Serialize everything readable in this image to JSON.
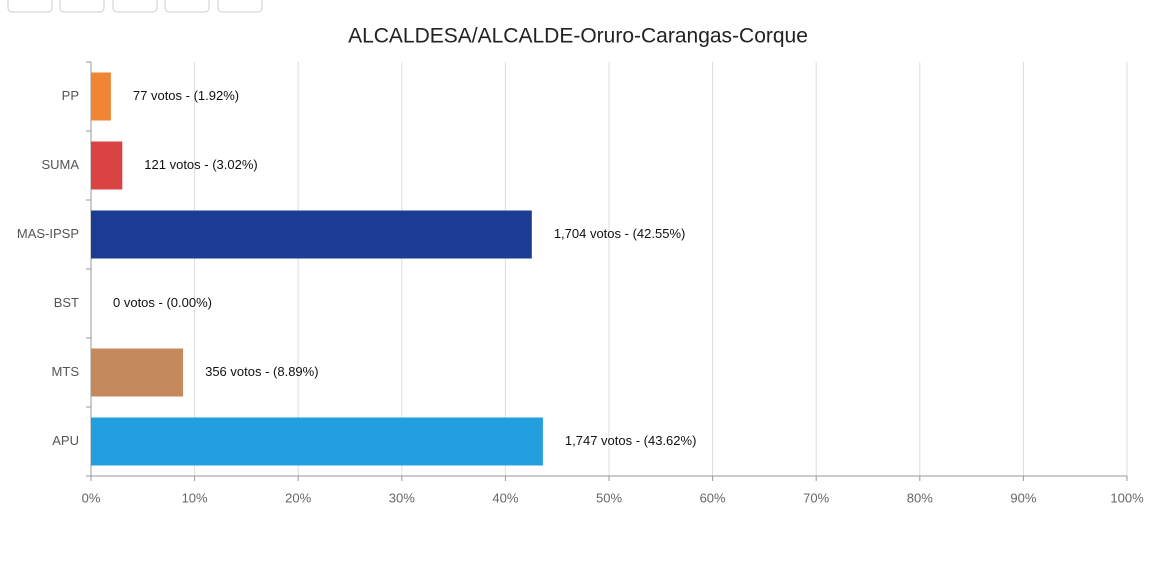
{
  "chart_data": {
    "type": "hbar",
    "title": "ALCALDESA/ALCALDE-Oruro-Carangas-Corque",
    "categories": [
      "PP",
      "SUMA",
      "MAS-IPSP",
      "BST",
      "MTS",
      "APU"
    ],
    "values": [
      1.92,
      3.02,
      42.55,
      0,
      8.89,
      43.62
    ],
    "value_labels": [
      "77 votos - (1.92%)",
      "121 votos - (3.02%)",
      "1,704 votos - (42.55%)",
      "0 votos - (0.00%)",
      "356 votos - (8.89%)",
      "1,747 votos - (43.62%)"
    ],
    "colors": [
      "#ef8535",
      "#d94343",
      "#1a3d93",
      "#888888",
      "#c48a5e",
      "#239fe0"
    ],
    "xlim": [
      0,
      100
    ],
    "xticks": [
      {
        "value": 0,
        "label": "0%"
      },
      {
        "value": 10,
        "label": "10%"
      },
      {
        "value": 20,
        "label": "20%"
      },
      {
        "value": 30,
        "label": "30%"
      },
      {
        "value": 40,
        "label": "40%"
      },
      {
        "value": 50,
        "label": "50%"
      },
      {
        "value": 60,
        "label": "60%"
      },
      {
        "value": 70,
        "label": "70%"
      },
      {
        "value": 80,
        "label": "80%"
      },
      {
        "value": 90,
        "label": "90%"
      },
      {
        "value": 100,
        "label": "100%"
      }
    ],
    "grid": true
  }
}
